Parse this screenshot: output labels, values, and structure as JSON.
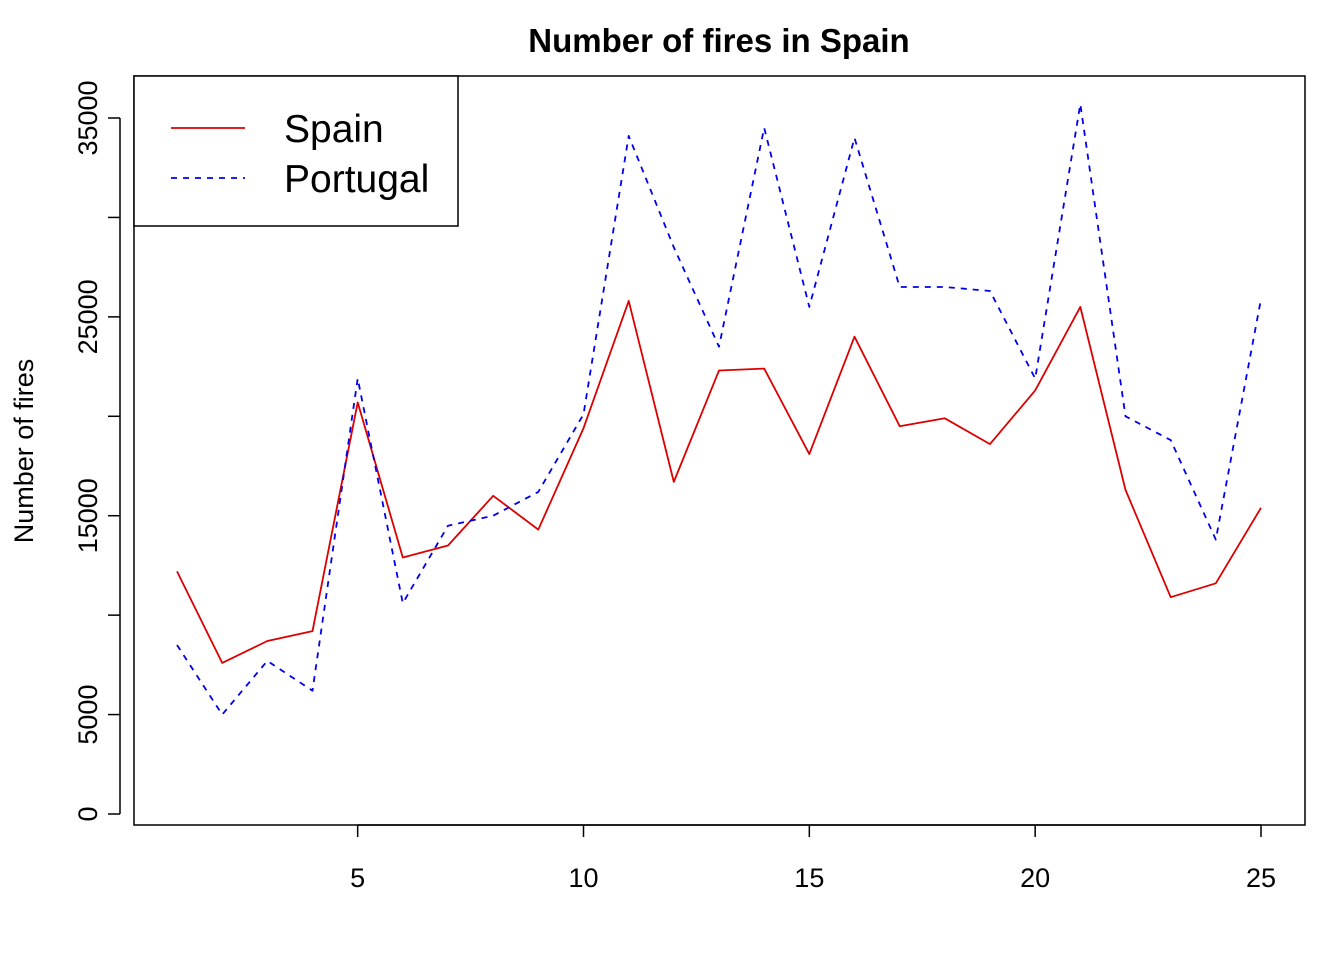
{
  "chart_data": {
    "type": "line",
    "title": "Number of fires in Spain",
    "xlabel": "",
    "ylabel": "Number of fires",
    "xlim": [
      0.6,
      25.4
    ],
    "ylim": [
      0,
      36000
    ],
    "x_ticks": [
      5,
      10,
      15,
      20,
      25
    ],
    "y_ticks": [
      0,
      5000,
      15000,
      25000,
      35000
    ],
    "y_ticks_unlabeled": [
      10000,
      20000,
      30000
    ],
    "grid": false,
    "legend": {
      "position": "top-left",
      "entries": [
        {
          "name": "Spain",
          "color": "#dd0000",
          "style": "solid"
        },
        {
          "name": "Portugal",
          "color": "#0000ee",
          "style": "dashed"
        }
      ]
    },
    "x": [
      1,
      2,
      3,
      4,
      5,
      6,
      7,
      8,
      9,
      10,
      11,
      12,
      13,
      14,
      15,
      16,
      17,
      18,
      19,
      20,
      21,
      22,
      23,
      24,
      25
    ],
    "series": [
      {
        "name": "Spain",
        "color": "#dd0000",
        "style": "solid",
        "values": [
          12200,
          7600,
          8700,
          9200,
          20700,
          12900,
          13500,
          16000,
          14300,
          19400,
          25800,
          16700,
          22300,
          22400,
          18100,
          24000,
          19500,
          19900,
          18600,
          21300,
          25500,
          16300,
          10900,
          11600,
          15400
        ]
      },
      {
        "name": "Portugal",
        "color": "#0000ee",
        "style": "dashed",
        "values": [
          8500,
          5000,
          7700,
          6200,
          21900,
          10600,
          14500,
          15000,
          16200,
          20100,
          34100,
          28500,
          23500,
          34500,
          25500,
          34000,
          26500,
          26500,
          26300,
          21900,
          35700,
          20000,
          18800,
          13800,
          25900
        ]
      }
    ]
  }
}
